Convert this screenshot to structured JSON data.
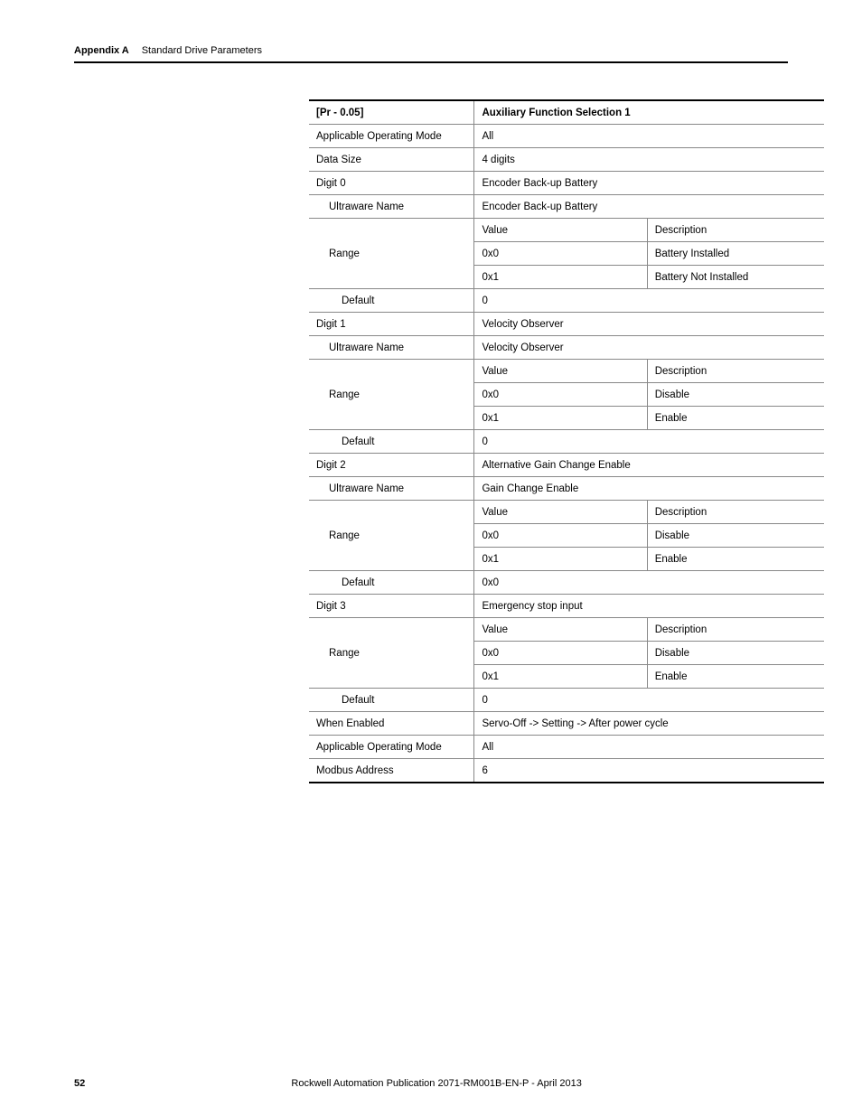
{
  "header": {
    "appendix_label": "Appendix A",
    "appendix_title": "Standard Drive Parameters"
  },
  "table": {
    "param_id": "[Pr - 0.05]",
    "param_name": "Auxiliary Function Selection 1",
    "rows": {
      "app_mode_label": "Applicable Operating Mode",
      "app_mode_value": "All",
      "data_size_label": "Data Size",
      "data_size_value": "4 digits",
      "d0_label": "Digit 0",
      "d0_value": "Encoder Back-up Battery",
      "d0_uw_label": "Ultraware Name",
      "d0_uw_value": "Encoder Back-up Battery",
      "d0_range_label": "Range",
      "d0_range_value": "Value",
      "d0_range_desc": "Description",
      "d0_r0_v": "0x0",
      "d0_r0_d": "Battery Installed",
      "d0_r1_v": "0x1",
      "d0_r1_d": "Battery Not Installed",
      "d0_def_label": "Default",
      "d0_def_value": "0",
      "d1_label": "Digit 1",
      "d1_value": "Velocity Observer",
      "d1_uw_label": "Ultraware Name",
      "d1_uw_value": "Velocity Observer",
      "d1_range_label": "Range",
      "d1_range_value": "Value",
      "d1_range_desc": "Description",
      "d1_r0_v": "0x0",
      "d1_r0_d": "Disable",
      "d1_r1_v": "0x1",
      "d1_r1_d": "Enable",
      "d1_def_label": "Default",
      "d1_def_value": "0",
      "d2_label": "Digit 2",
      "d2_value": "Alternative Gain Change Enable",
      "d2_uw_label": "Ultraware Name",
      "d2_uw_value": "Gain Change Enable",
      "d2_range_label": "Range",
      "d2_range_value": "Value",
      "d2_range_desc": "Description",
      "d2_r0_v": "0x0",
      "d2_r0_d": "Disable",
      "d2_r1_v": "0x1",
      "d2_r1_d": "Enable",
      "d2_def_label": "Default",
      "d2_def_value": "0x0",
      "d3_label": "Digit 3",
      "d3_value": "Emergency stop input",
      "d3_range_label": "Range",
      "d3_range_value": "Value",
      "d3_range_desc": "Description",
      "d3_r0_v": "0x0",
      "d3_r0_d": "Disable",
      "d3_r1_v": "0x1",
      "d3_r1_d": "Enable",
      "d3_def_label": "Default",
      "d3_def_value": "0",
      "when_label": "When Enabled",
      "when_value": "Servo-Off -> Setting -> After power cycle",
      "app_mode2_label": "Applicable Operating Mode",
      "app_mode2_value": "All",
      "modbus_label": "Modbus Address",
      "modbus_value": "6"
    }
  },
  "footer": {
    "page_number": "52",
    "publication": "Rockwell Automation Publication 2071-RM001B-EN-P - April 2013"
  }
}
